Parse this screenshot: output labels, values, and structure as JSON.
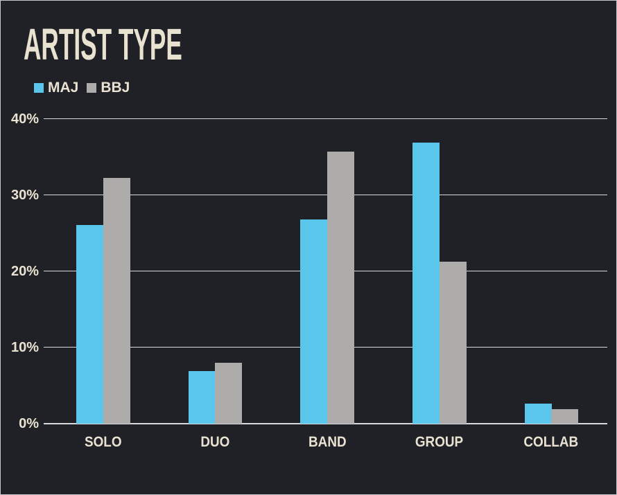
{
  "chart_data": {
    "type": "bar",
    "title": "ARTIST TYPE",
    "categories": [
      "SOLO",
      "DUO",
      "BAND",
      "GROUP",
      "COLLAB"
    ],
    "series": [
      {
        "name": "MAJ",
        "color": "#5ac6ec",
        "values": [
          26.1,
          6.9,
          26.8,
          36.9,
          2.6
        ]
      },
      {
        "name": "BBJ",
        "color": "#aeabab",
        "values": [
          32.3,
          8.0,
          35.7,
          21.3,
          1.9
        ]
      }
    ],
    "xlabel": "",
    "ylabel": "",
    "ylim": [
      0,
      40
    ],
    "yticks": [
      0,
      10,
      20,
      30,
      40
    ],
    "ytick_labels": [
      "0%",
      "10%",
      "20%",
      "30%",
      "40%"
    ],
    "grid": true,
    "legend_position": "top-left"
  },
  "colors": {
    "background": "#1f2127",
    "frame_border": "#c6c9cd",
    "gridline": "#d9dadc",
    "text": "#eae2d1",
    "series_maj": "#5ac6ec",
    "series_bbj": "#aeabab"
  }
}
